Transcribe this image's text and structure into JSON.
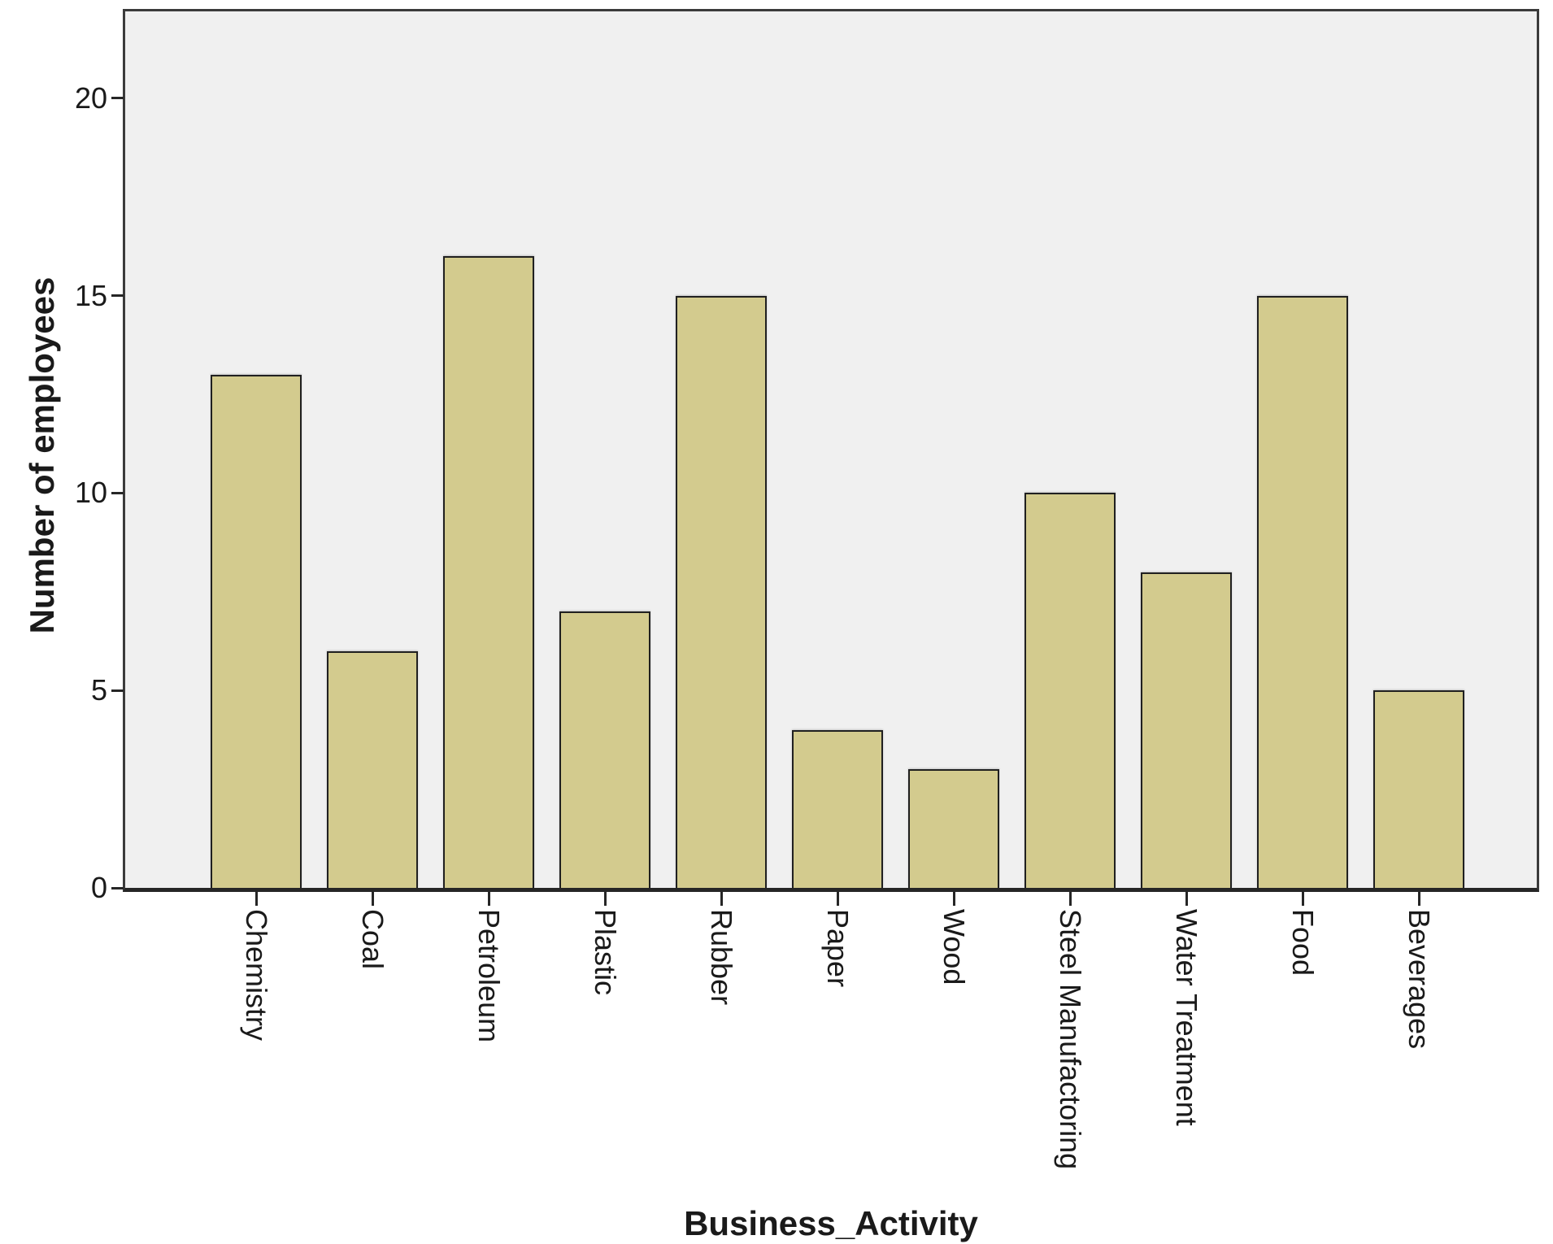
{
  "chart_data": {
    "type": "bar",
    "title": "",
    "xlabel": "Business_Activity",
    "ylabel": "Number of employees",
    "categories": [
      "Chemistry",
      "Coal",
      "Petroleum",
      "Plastic",
      "Rubber",
      "Paper",
      "Wood",
      "Steel Manufactoring",
      "Water Treatment",
      "Food",
      "Beverages"
    ],
    "values": [
      13,
      6,
      16,
      7,
      15,
      4,
      3,
      10,
      8,
      15,
      5
    ],
    "yticks": [
      0,
      5,
      10,
      15,
      20
    ],
    "ylim": [
      0,
      22.2
    ],
    "grid": false,
    "legend": "none",
    "colors": {
      "bar_fill": "#D3CB8E",
      "bar_border": "#202020",
      "plot_background": "#F0F0F0",
      "frame_border": "#3B3B3B",
      "axis_line": "#262626",
      "text": "#1A1A1A",
      "background": "#FFFFFF"
    }
  }
}
